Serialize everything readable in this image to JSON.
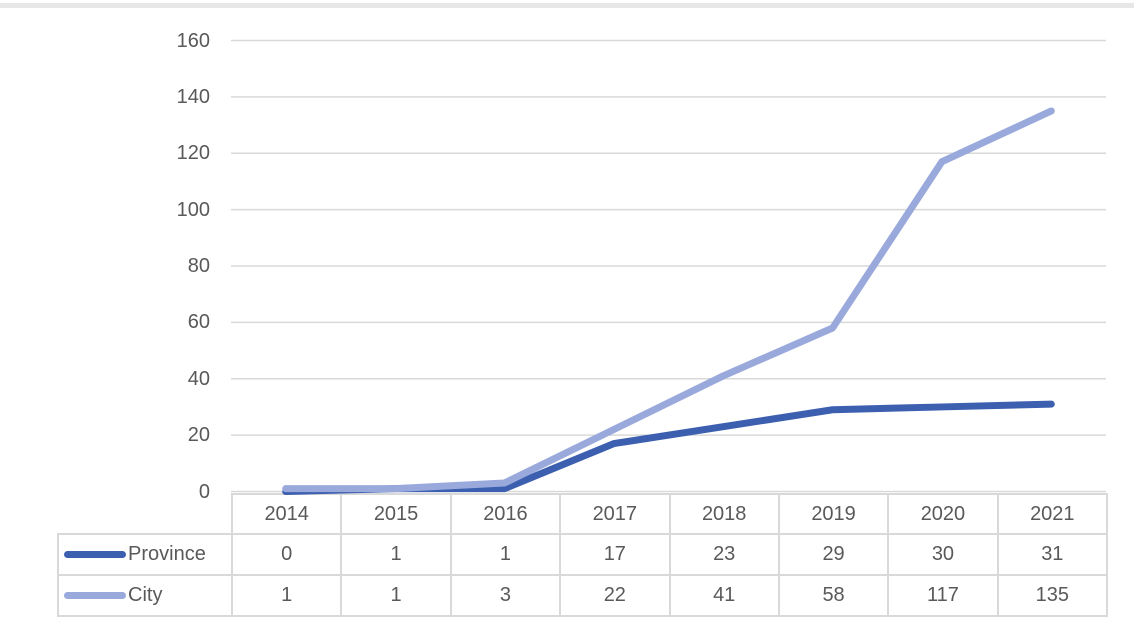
{
  "page": {
    "background": "#FFFFFF",
    "top_border_color": "#E7E7E7"
  },
  "colors": {
    "axis_text": "#595959",
    "table_text": "#595959",
    "gridline": "#D9D9D9",
    "table_border": "#D9D9D9"
  },
  "chart_data": {
    "type": "line",
    "title": "",
    "xlabel": "",
    "ylabel": "",
    "categories": [
      "2014",
      "2015",
      "2016",
      "2017",
      "2018",
      "2019",
      "2020",
      "2021"
    ],
    "series": [
      {
        "name": "Province",
        "values": [
          0,
          1,
          1,
          17,
          23,
          29,
          30,
          31
        ],
        "color": "#3C5FB0"
      },
      {
        "name": "City",
        "values": [
          1,
          1,
          3,
          22,
          41,
          58,
          117,
          135
        ],
        "color": "#9AA9DC"
      }
    ],
    "ylim": [
      0,
      160
    ],
    "yticks": [
      0,
      20,
      40,
      60,
      80,
      100,
      120,
      140,
      160
    ],
    "grid": "horizontal-gridlines",
    "legend_position": "data-table-left",
    "line_width": 7
  }
}
